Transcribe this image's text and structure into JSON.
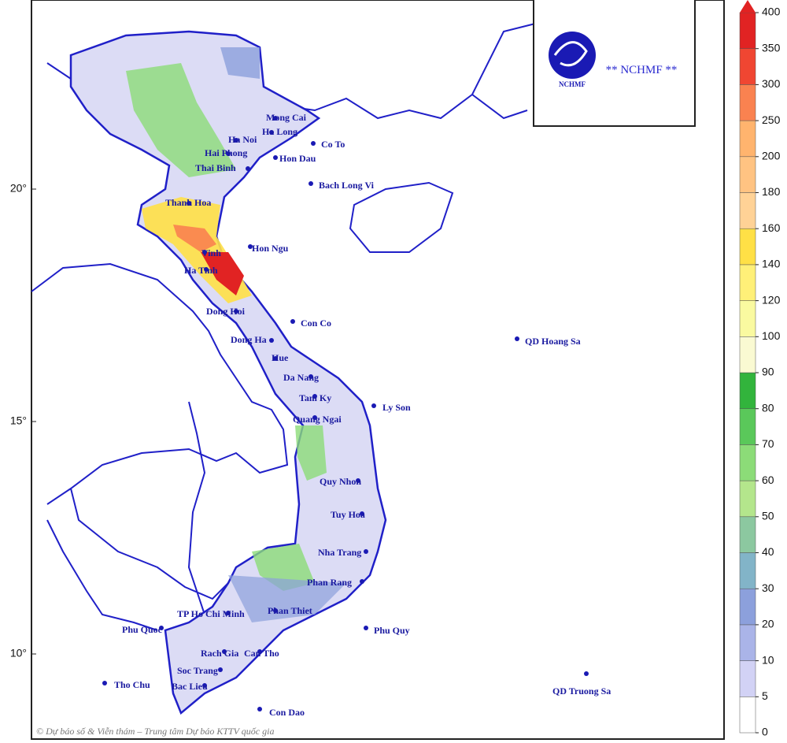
{
  "logo": {
    "org": "NCHMF",
    "caption": "** NCHMF **"
  },
  "copyright": "© Dự báo số & Viễn thám – Trung tâm Dự báo KTTV quốc gia",
  "latitude_ticks": [
    {
      "value": 20,
      "label": "20°"
    },
    {
      "value": 15,
      "label": "15°"
    },
    {
      "value": 10,
      "label": "10°"
    }
  ],
  "places": [
    "Mong Cai",
    "Ha Long",
    "Ha Noi",
    "Co To",
    "Hai Phong",
    "Hon Dau",
    "Thai Binh",
    "Bach Long Vi",
    "Thanh Hoa",
    "Hon Ngu",
    "Vinh",
    "Ha Tinh",
    "Dong Hoi",
    "Con Co",
    "Dong Ha",
    "Hue",
    "QD Hoang Sa",
    "Da Nang",
    "Tam Ky",
    "Ly Son",
    "Quang Ngai",
    "Quy Nhon",
    "Tuy Hoa",
    "Nha Trang",
    "Phan Rang",
    "TP Ho Chi Minh",
    "Phan Thiet",
    "Phu Quy",
    "Phu Quoc",
    "Rach Gia",
    "Can Tho",
    "Soc Trang",
    "Tho Chu",
    "Bac Lieu",
    "QD Truong Sa",
    "Con Dao"
  ],
  "colorbar": {
    "levels": [
      0,
      5,
      10,
      20,
      30,
      40,
      50,
      60,
      70,
      80,
      90,
      100,
      120,
      140,
      160,
      180,
      200,
      250,
      300,
      350,
      400
    ],
    "colors": [
      "#ffffff",
      "#d2d2f5",
      "#aab4e8",
      "#8ca0dc",
      "#82b4c8",
      "#8cc8a0",
      "#b4e68c",
      "#8cdc78",
      "#5ac85a",
      "#32b43c",
      "#fafad2",
      "#fafaa0",
      "#fff078",
      "#ffe046",
      "#ffd296",
      "#ffc382",
      "#ffb46e",
      "#fa8250",
      "#f04632",
      "#e12323"
    ]
  }
}
